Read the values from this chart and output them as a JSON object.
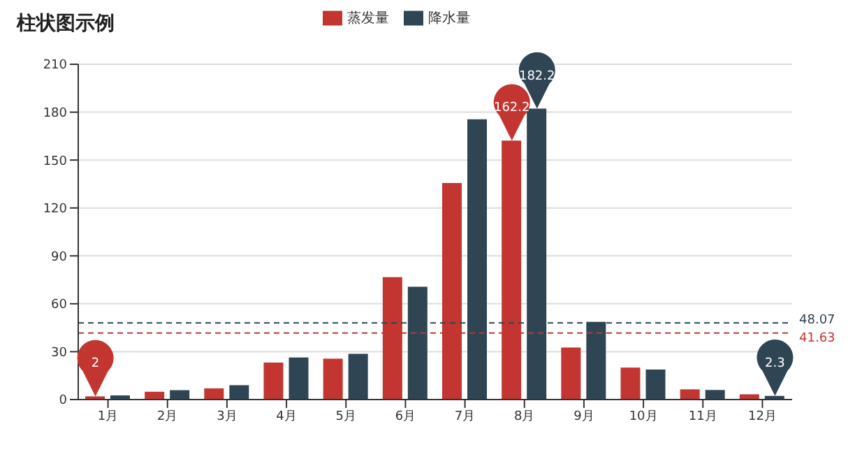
{
  "chart_data": {
    "type": "bar",
    "title": "柱状图示例",
    "categories": [
      "1月",
      "2月",
      "3月",
      "4月",
      "5月",
      "6月",
      "7月",
      "8月",
      "9月",
      "10月",
      "11月",
      "12月"
    ],
    "series": [
      {
        "name": "蒸发量",
        "color": "#c23531",
        "values": [
          2.0,
          4.9,
          7.0,
          23.2,
          25.6,
          76.7,
          135.6,
          162.2,
          32.6,
          20.0,
          6.4,
          3.3
        ]
      },
      {
        "name": "降水量",
        "color": "#2f4554",
        "values": [
          2.6,
          5.9,
          9.0,
          26.4,
          28.7,
          70.7,
          175.6,
          182.2,
          48.7,
          18.8,
          6.0,
          2.3
        ]
      }
    ],
    "ylim": [
      0,
      210
    ],
    "yticks": [
      0,
      30,
      60,
      90,
      120,
      150,
      180,
      210
    ],
    "grid": "y",
    "legend": "top",
    "ref_lines": [
      {
        "axis": "y",
        "value": 48.07,
        "label": "48.07",
        "color": "#2f4554",
        "line_style": "dashed"
      },
      {
        "axis": "y",
        "value": 41.63,
        "label": "41.63",
        "color": "#c23531",
        "line_style": "dashed"
      }
    ],
    "annotations": [
      {
        "text": "2",
        "x": "1月",
        "y": 2.0
      },
      {
        "text": "162.2",
        "x": "8月",
        "y": 162.2
      },
      {
        "text": "182.2",
        "x": "8月",
        "y": 182.2
      },
      {
        "text": "2.3",
        "x": "12月",
        "y": 2.3
      }
    ]
  }
}
